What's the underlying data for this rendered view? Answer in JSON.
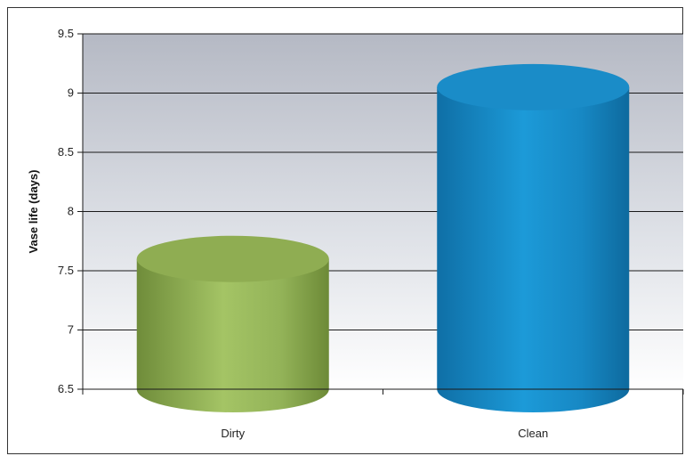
{
  "chart_data": {
    "type": "bar",
    "style": "3d-cylinder",
    "title": "",
    "xlabel": "",
    "ylabel": "Vase life (days)",
    "categories": [
      "Dirty",
      "Clean"
    ],
    "values": [
      7.6,
      9.05
    ],
    "ylim": [
      6.5,
      9.5
    ],
    "yticks": [
      "6.5",
      "7",
      "7.5",
      "8",
      "8.5",
      "9",
      "9.5"
    ],
    "grid": true,
    "legend": "none",
    "colors": {
      "Dirty": "#8fad52",
      "Clean": "#1a8cc8",
      "plot_background_top": "#b8bcc6",
      "plot_background_bottom": "#ffffff"
    }
  }
}
